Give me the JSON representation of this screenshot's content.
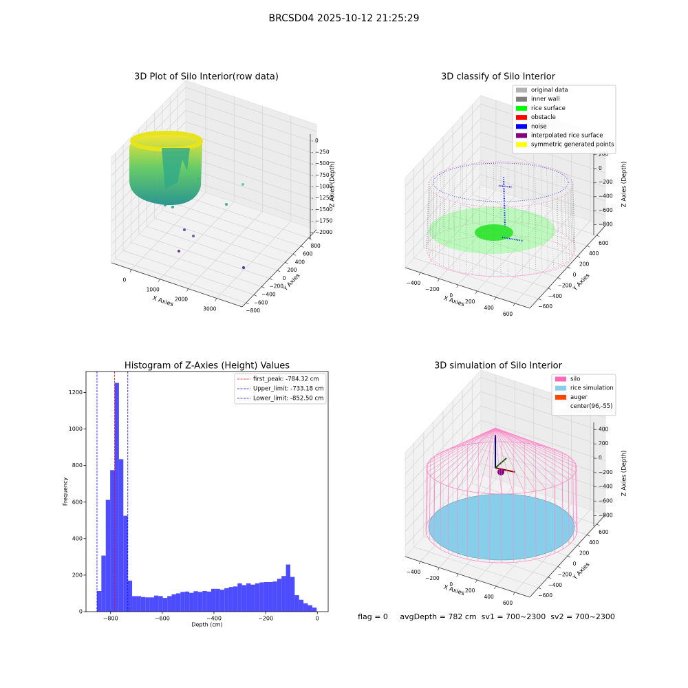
{
  "title": "BRCSD04 2025-10-12 21:25:29",
  "footer": "flag = 0     avgDepth = 782 cm  sv1 = 700~2300  sv2 = 700~2300",
  "chart_data": [
    {
      "type": "scatter3d",
      "title": "3D Plot of Silo Interior(row data)",
      "xlabel": "X Axies",
      "ylabel": "Y Axies",
      "zlabel": "Z Axies (Depth)",
      "xlim": [
        -700,
        3900
      ],
      "ylim": [
        -900,
        1000
      ],
      "zlim": [
        -2150,
        150
      ],
      "xticks": [
        0,
        1000,
        2000,
        3000
      ],
      "yticks": [
        {
          "value": -800,
          "label": "−800"
        },
        {
          "value": -600,
          "label": "−600"
        },
        {
          "value": -400,
          "label": "−400"
        },
        {
          "value": -200,
          "label": "−200"
        },
        0,
        200,
        400,
        600,
        800
      ],
      "zticks": [
        0,
        {
          "value": -250,
          "label": "−250"
        },
        {
          "value": -500,
          "label": "−500"
        },
        {
          "value": -750,
          "label": "−750"
        },
        {
          "value": -1000,
          "label": "−1000"
        },
        {
          "value": -1250,
          "label": "−1250"
        },
        {
          "value": -1500,
          "label": "−1500"
        },
        {
          "value": -1750,
          "label": "−1750"
        },
        {
          "value": -2000,
          "label": "−2000"
        }
      ]
    },
    {
      "type": "scatter3d",
      "title": "3D classify of Silo Interior",
      "xlabel": "X Axies",
      "ylabel": "Y Axies",
      "zlabel": "Z Axies (Depth)",
      "xlim": [
        -560,
        760
      ],
      "ylim": [
        -780,
        780
      ],
      "zlim": [
        -950,
        320
      ],
      "xticks": [
        {
          "value": -400,
          "label": "−400"
        },
        {
          "value": -200,
          "label": "−200"
        },
        0,
        200,
        400,
        600
      ],
      "yticks": [
        {
          "value": -600,
          "label": "−600"
        },
        {
          "value": -400,
          "label": "−400"
        },
        {
          "value": -200,
          "label": "−200"
        },
        0,
        200,
        400,
        600
      ],
      "zticks": [
        200,
        0,
        {
          "value": -200,
          "label": "−200"
        },
        {
          "value": -400,
          "label": "−400"
        },
        {
          "value": -600,
          "label": "−600"
        },
        {
          "value": -800,
          "label": "−800"
        }
      ],
      "legend": [
        {
          "name": "original data",
          "color": "#b3b3b3"
        },
        {
          "name": "inner wall",
          "color": "#808080"
        },
        {
          "name": "rice surface",
          "color": "#00ff00"
        },
        {
          "name": "obstacle",
          "color": "#ff0000"
        },
        {
          "name": "noise",
          "color": "#0000ff"
        },
        {
          "name": "interpolated rice surface",
          "color": "#800080"
        },
        {
          "name": "symmetric generated points",
          "color": "#ffff00"
        }
      ]
    },
    {
      "type": "histogram",
      "title": "Histogram of Z-Axies (Height) Values",
      "xlabel": "Depth (cm)",
      "ylabel": "Frequency",
      "color": "#4d4dff",
      "bins": [
        -852.5,
        -835.5,
        -818.5,
        -801.5,
        -784.5,
        -767.5,
        -750.5,
        -733.5,
        -716.5,
        -699.5,
        -682.5,
        -665.5,
        -648.5,
        -631.5,
        -614.5,
        -597.5,
        -580.5,
        -563.5,
        -546.5,
        -529.5,
        -512.5,
        -495.5,
        -478.5,
        -461.5,
        -444.5,
        -427.5,
        -410.5,
        -393.5,
        -376.5,
        -359.5,
        -342.5,
        -325.5,
        -308.5,
        -291.5,
        -274.5,
        -257.5,
        -240.5,
        -223.5,
        -206.5,
        -189.5,
        -172.5,
        -155.5,
        -138.5,
        -121.5,
        -104.5,
        -87.5,
        -70.5,
        -53.5,
        -36.5,
        -19.5,
        -2.5
      ],
      "values": [
        113,
        307,
        612,
        775,
        1253,
        835,
        525,
        170,
        85,
        85,
        80,
        78,
        78,
        88,
        85,
        75,
        85,
        95,
        100,
        108,
        110,
        103,
        112,
        108,
        113,
        110,
        125,
        125,
        120,
        128,
        135,
        138,
        155,
        145,
        155,
        148,
        155,
        160,
        162,
        162,
        165,
        180,
        195,
        258,
        190,
        90,
        65,
        45,
        35,
        22
      ],
      "lines": [
        {
          "name": "first_peak: -784.32 cm",
          "value": -784.32,
          "color": "#ff0000"
        },
        {
          "name": "Upper_limit: -733.18 cm",
          "value": -733.18,
          "color": "#0000ff"
        },
        {
          "name": "Lower_limit: -852.50 cm",
          "value": -852.5,
          "color": "#0000ff"
        }
      ],
      "xlim": [
        -895,
        42
      ],
      "ylim": [
        0,
        1315
      ],
      "xticks": [
        {
          "value": -800,
          "label": "−800"
        },
        {
          "value": -600,
          "label": "−600"
        },
        {
          "value": -400,
          "label": "−400"
        },
        {
          "value": -200,
          "label": "−200"
        },
        0
      ],
      "yticks": [
        0,
        200,
        400,
        600,
        800,
        1000,
        1200
      ]
    },
    {
      "type": "surface3d",
      "title": "3D simulation of Silo Interior",
      "xlabel": "X Axies",
      "ylabel": "Y Axies",
      "zlabel": "Z Axies (Depth)",
      "xlim": [
        -560,
        760
      ],
      "ylim": [
        -780,
        780
      ],
      "zlim": [
        -950,
        500
      ],
      "xticks": [
        {
          "value": -400,
          "label": "−400"
        },
        {
          "value": -200,
          "label": "−200"
        },
        0,
        200,
        400,
        600
      ],
      "yticks": [
        {
          "value": -600,
          "label": "−600"
        },
        {
          "value": -400,
          "label": "−400"
        },
        {
          "value": -200,
          "label": "−200"
        },
        0,
        200,
        400,
        600
      ],
      "zticks": [
        400,
        200,
        0,
        {
          "value": -200,
          "label": "−200"
        },
        {
          "value": -400,
          "label": "−400"
        },
        {
          "value": -600,
          "label": "−600"
        },
        {
          "value": -800,
          "label": "−800"
        }
      ],
      "legend": [
        {
          "name": "silo",
          "color": "#ff69b4"
        },
        {
          "name": "rice simulation",
          "color": "#87ceeb"
        },
        {
          "name": "auger",
          "color": "#ff4500"
        },
        {
          "name": "center(96,-55)",
          "color": "#ffffff"
        }
      ]
    }
  ]
}
